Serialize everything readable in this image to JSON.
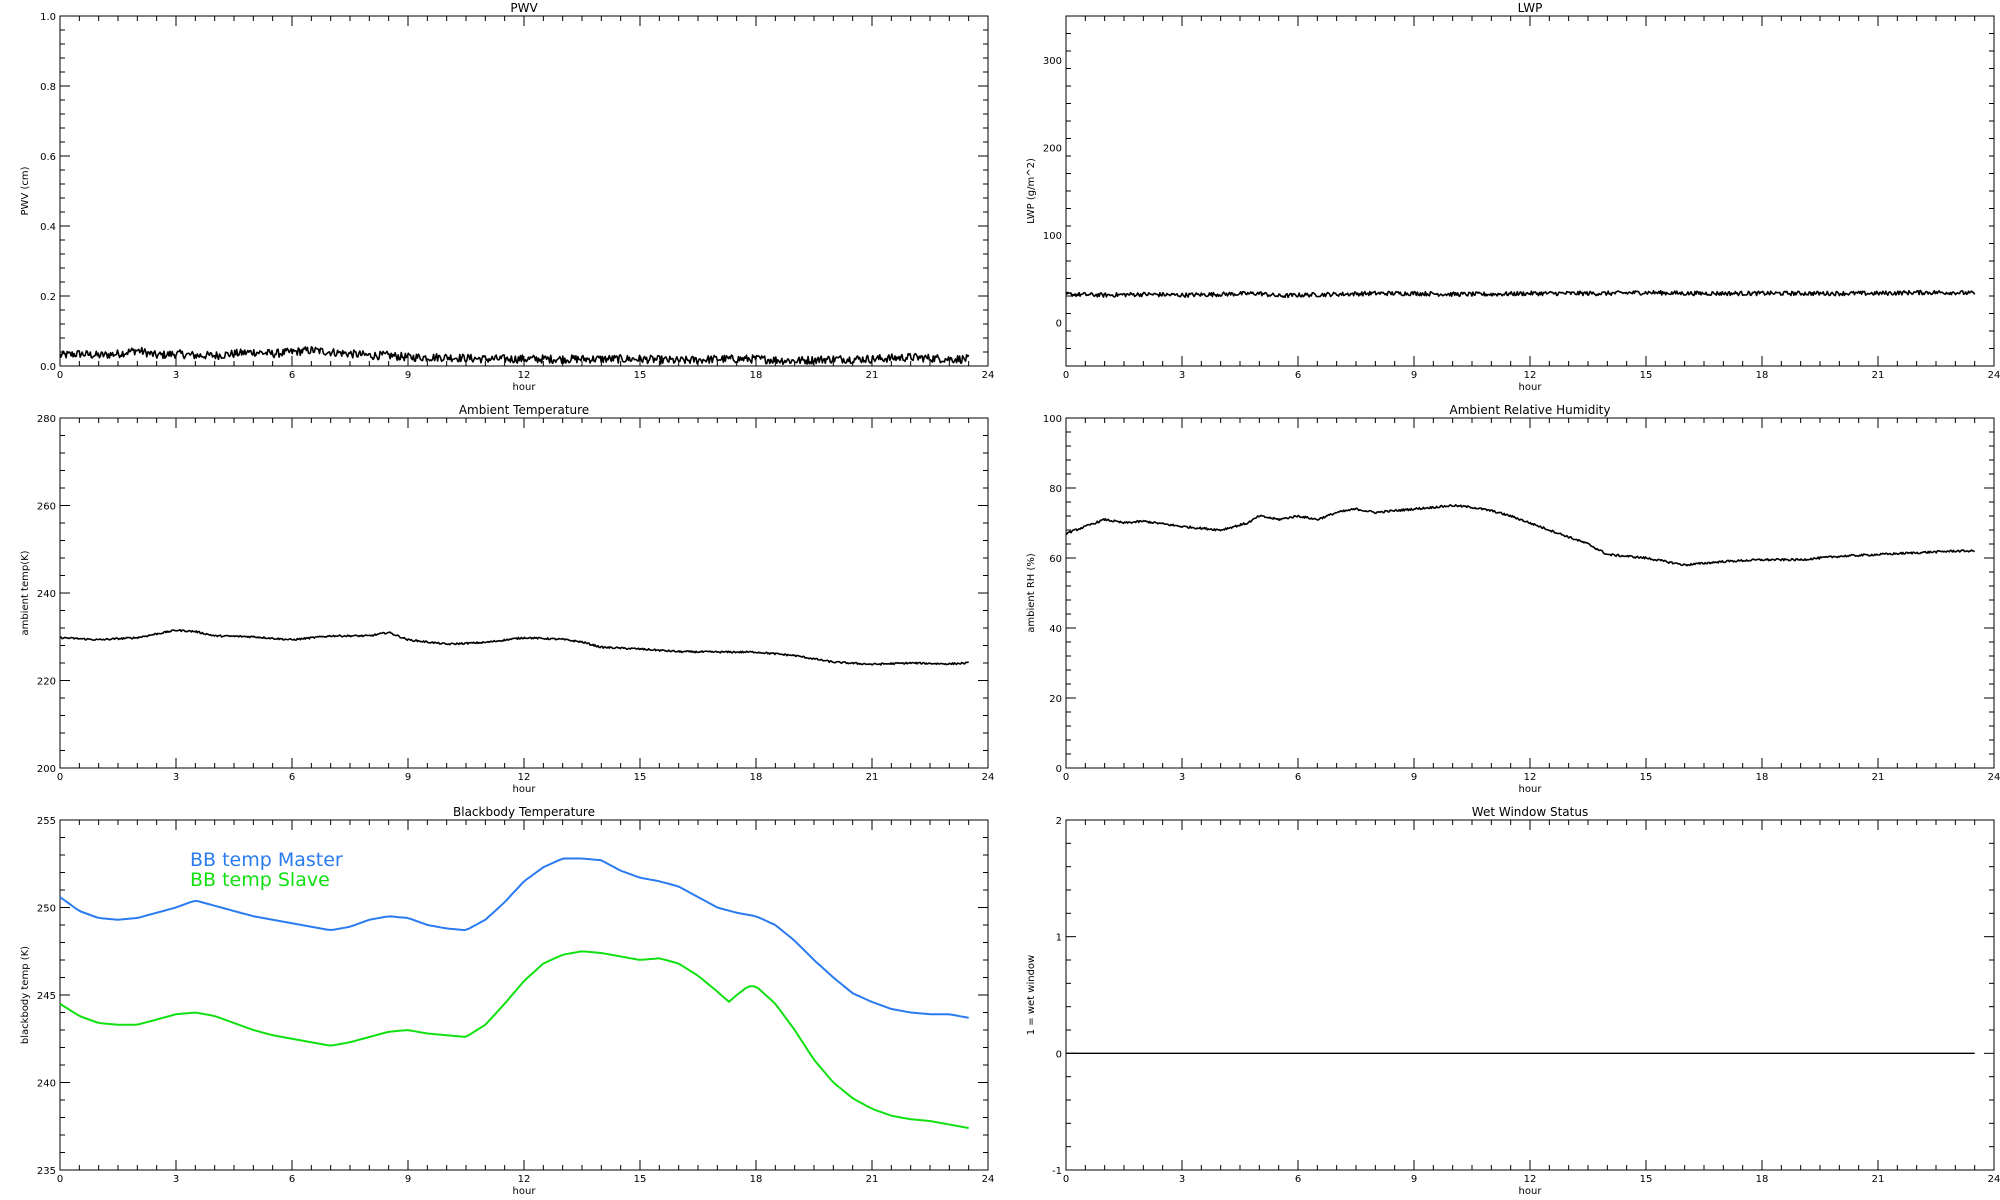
{
  "chart_data": [
    {
      "type": "line",
      "title": "PWV",
      "xlabel": "hour",
      "ylabel": "PWV (cm)",
      "xlim": [
        0,
        24
      ],
      "ylim": [
        0,
        1.0
      ],
      "xticks": [
        0,
        3,
        6,
        9,
        12,
        15,
        18,
        21,
        24
      ],
      "yticks": [
        0.0,
        0.2,
        0.4,
        0.6,
        0.8,
        1.0
      ],
      "ytick_labels": [
        "0.0",
        "0.2",
        "0.4",
        "0.6",
        "0.8",
        "1.0"
      ],
      "noise": 0.012,
      "series": [
        {
          "color": "#000000",
          "x": [
            0,
            0.5,
            1,
            1.5,
            2,
            2.5,
            3,
            3.5,
            4,
            4.5,
            5,
            5.5,
            6,
            6.5,
            7,
            7.5,
            8,
            8.5,
            9,
            10,
            11,
            12,
            13,
            14,
            15,
            16,
            17,
            18,
            19,
            20,
            21,
            22,
            23,
            23.5
          ],
          "y": [
            0.03,
            0.035,
            0.03,
            0.035,
            0.045,
            0.03,
            0.035,
            0.03,
            0.03,
            0.035,
            0.04,
            0.035,
            0.04,
            0.045,
            0.04,
            0.035,
            0.03,
            0.03,
            0.025,
            0.025,
            0.02,
            0.02,
            0.02,
            0.02,
            0.02,
            0.015,
            0.02,
            0.02,
            0.015,
            0.02,
            0.02,
            0.025,
            0.02,
            0.02
          ]
        }
      ]
    },
    {
      "type": "line",
      "title": "LWP",
      "xlabel": "hour",
      "ylabel": "LWP (g/m^2)",
      "xlim": [
        0,
        24
      ],
      "ylim": [
        -50,
        350
      ],
      "xticks": [
        0,
        3,
        6,
        9,
        12,
        15,
        18,
        21,
        24
      ],
      "yticks": [
        0,
        100,
        200,
        300
      ],
      "ytick_labels": [
        "0",
        "100",
        "200",
        "300"
      ],
      "noise": 2.5,
      "series": [
        {
          "color": "#000000",
          "x": [
            0,
            1,
            2,
            3,
            4,
            5,
            5.5,
            6,
            7,
            8,
            9,
            10,
            11,
            12,
            13,
            14,
            15,
            16,
            17,
            18,
            19,
            20,
            21,
            22,
            23,
            23.5
          ],
          "y": [
            32,
            31,
            32,
            31,
            32,
            33,
            30,
            31,
            32,
            33,
            33,
            32,
            32,
            33,
            33,
            33,
            34,
            33,
            33,
            33,
            33,
            33,
            33,
            34,
            34,
            33
          ]
        }
      ]
    },
    {
      "type": "line",
      "title": "Ambient Temperature",
      "xlabel": "hour",
      "ylabel": "ambient temp(K)",
      "xlim": [
        0,
        24
      ],
      "ylim": [
        200,
        280
      ],
      "xticks": [
        0,
        3,
        6,
        9,
        12,
        15,
        18,
        21,
        24
      ],
      "yticks": [
        200,
        220,
        240,
        260,
        280
      ],
      "ytick_labels": [
        "200",
        "220",
        "240",
        "260",
        "280"
      ],
      "noise": 0.2,
      "series": [
        {
          "color": "#000000",
          "x": [
            0,
            1,
            2,
            3,
            3.5,
            4,
            5,
            6,
            7,
            8,
            8.5,
            9,
            10,
            11,
            12,
            13,
            13.5,
            14,
            15,
            16,
            17,
            18,
            19,
            20,
            21,
            22,
            23,
            23.5
          ],
          "y": [
            229.8,
            229.3,
            229.8,
            231.5,
            231.2,
            230.2,
            230,
            229.3,
            230.2,
            230.2,
            231,
            229.3,
            228.3,
            228.7,
            229.8,
            229.4,
            228.8,
            227.6,
            227.2,
            226.6,
            226.5,
            226.5,
            225.7,
            224.2,
            223.7,
            224,
            223.8,
            224
          ]
        }
      ]
    },
    {
      "type": "line",
      "title": "Ambient Relative Humidity",
      "xlabel": "hour",
      "ylabel": "ambient RH (%)",
      "xlim": [
        0,
        24
      ],
      "ylim": [
        0,
        100
      ],
      "xticks": [
        0,
        3,
        6,
        9,
        12,
        15,
        18,
        21,
        24
      ],
      "yticks": [
        0,
        20,
        40,
        60,
        80,
        100
      ],
      "ytick_labels": [
        "0",
        "20",
        "40",
        "60",
        "80",
        "100"
      ],
      "noise": 0.3,
      "series": [
        {
          "color": "#000000",
          "x": [
            0,
            0.5,
            1,
            1.5,
            2,
            3,
            4,
            4.7,
            5,
            5.5,
            6,
            6.5,
            7,
            7.5,
            8,
            8.5,
            9,
            9.5,
            10,
            10.5,
            11,
            11.5,
            12,
            12.5,
            13,
            13.5,
            14,
            15,
            15.5,
            16,
            17,
            18,
            19,
            20,
            21,
            22,
            23,
            23.5
          ],
          "y": [
            67,
            69,
            71,
            70,
            70.5,
            69,
            68,
            70,
            72,
            71,
            72,
            71,
            73,
            74,
            73,
            73.5,
            74,
            74.5,
            75,
            74.5,
            73.5,
            72,
            70,
            68,
            66,
            64,
            61,
            60,
            59,
            58,
            59,
            59.5,
            59.5,
            60.5,
            61,
            61.5,
            62,
            62
          ]
        }
      ]
    },
    {
      "type": "line",
      "title": "Blackbody Temperature",
      "xlabel": "hour",
      "ylabel": "blackbody temp (K)",
      "xlim": [
        0,
        24
      ],
      "ylim": [
        235,
        255
      ],
      "xticks": [
        0,
        3,
        6,
        9,
        12,
        15,
        18,
        21,
        24
      ],
      "yticks": [
        235,
        240,
        245,
        250,
        255
      ],
      "ytick_labels": [
        "235",
        "240",
        "245",
        "250",
        "255"
      ],
      "noise": 0,
      "legend": [
        "BB temp Master",
        "BB temp Slave"
      ],
      "series": [
        {
          "name": "BB temp Master",
          "color": "#2a7bf0",
          "x": [
            0,
            0.5,
            1,
            1.5,
            2,
            2.5,
            3,
            3.5,
            4,
            4.5,
            5,
            5.5,
            6,
            6.5,
            7,
            7.5,
            8,
            8.5,
            9,
            9.5,
            10,
            10.5,
            11,
            11.5,
            12,
            12.5,
            13,
            13.5,
            14,
            14.5,
            15,
            15.5,
            16,
            16.5,
            17,
            17.5,
            18,
            18.5,
            19,
            19.5,
            20,
            20.5,
            21,
            21.5,
            22,
            22.5,
            23,
            23.5
          ],
          "y": [
            250.6,
            249.8,
            249.4,
            249.3,
            249.4,
            249.7,
            250.0,
            250.4,
            250.1,
            249.8,
            249.5,
            249.3,
            249.1,
            248.9,
            248.7,
            248.9,
            249.3,
            249.5,
            249.4,
            249.0,
            248.8,
            248.7,
            249.3,
            250.3,
            251.5,
            252.3,
            252.8,
            252.8,
            252.7,
            252.1,
            251.7,
            251.5,
            251.2,
            250.6,
            250.0,
            249.7,
            249.5,
            249.0,
            248.1,
            247.0,
            246.0,
            245.1,
            244.6,
            244.2,
            244.0,
            243.9,
            243.9,
            243.7
          ]
        },
        {
          "name": "BB temp Slave",
          "color": "#10e010",
          "x": [
            0,
            0.5,
            1,
            1.5,
            2,
            2.5,
            3,
            3.5,
            4,
            4.5,
            5,
            5.5,
            6,
            6.5,
            7,
            7.5,
            8,
            8.5,
            9,
            9.5,
            10,
            10.5,
            11,
            11.5,
            12,
            12.5,
            13,
            13.5,
            14,
            14.5,
            15,
            15.5,
            16,
            16.5,
            17,
            17.3,
            17.5,
            17.8,
            18,
            18.5,
            19,
            19.5,
            20,
            20.5,
            21,
            21.5,
            22,
            22.5,
            23,
            23.5
          ],
          "y": [
            244.5,
            243.8,
            243.4,
            243.3,
            243.3,
            243.6,
            243.9,
            244.0,
            243.8,
            243.4,
            243.0,
            242.7,
            242.5,
            242.3,
            242.1,
            242.3,
            242.6,
            242.9,
            243.0,
            242.8,
            242.7,
            242.6,
            243.3,
            244.5,
            245.8,
            246.8,
            247.3,
            247.5,
            247.4,
            247.2,
            247.0,
            247.1,
            246.8,
            246.1,
            245.2,
            244.6,
            245.0,
            245.5,
            245.5,
            244.5,
            243.0,
            241.3,
            240.0,
            239.1,
            238.5,
            238.1,
            237.9,
            237.8,
            237.6,
            237.4
          ]
        }
      ]
    },
    {
      "type": "line",
      "title": "Wet Window Status",
      "xlabel": "hour",
      "ylabel": "1 = wet window",
      "xlim": [
        0,
        24
      ],
      "ylim": [
        -1,
        2
      ],
      "xticks": [
        0,
        3,
        6,
        9,
        12,
        15,
        18,
        21,
        24
      ],
      "yticks": [
        -1,
        0,
        1,
        2
      ],
      "ytick_labels": [
        "-1",
        "0",
        "1",
        "2"
      ],
      "noise": 0,
      "series": [
        {
          "color": "#000000",
          "x": [
            0,
            23.5
          ],
          "y": [
            0,
            0
          ]
        }
      ]
    }
  ]
}
